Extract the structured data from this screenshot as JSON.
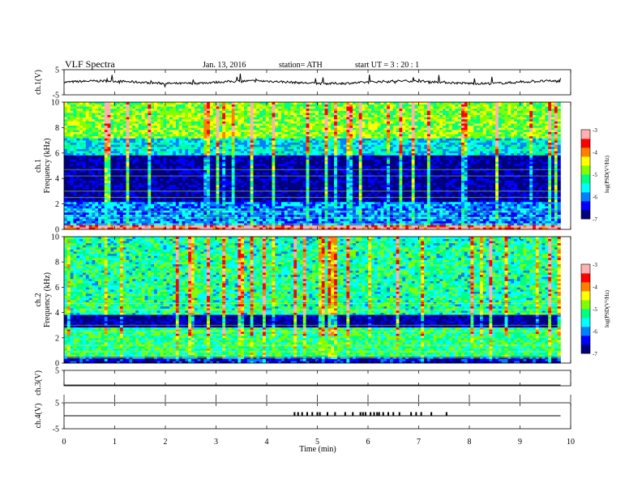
{
  "header": {
    "title": "VLF  Spectra",
    "date": "Jan. 13, 2016",
    "station": "station= ATH",
    "start": "start  UT  =   3  : 20 : 1"
  },
  "chart_data": [
    {
      "type": "line",
      "ylabel": "ch.1(V)",
      "ylim": [
        -5,
        5
      ],
      "yticks": [
        "5",
        "-5"
      ],
      "trace_level_v": 0.0
    },
    {
      "type": "heatmap",
      "ylabel": "ch.1\nFrequency  (kHz)",
      "ylim": [
        0,
        10
      ],
      "yticks": [
        "10",
        "8",
        "6",
        "4",
        "2",
        "0"
      ],
      "colorbar": {
        "label": "log(PSD(V²/Hz)",
        "range": [
          -7,
          -3
        ],
        "ticks": [
          "-3",
          "-4",
          "-5",
          "-6",
          "-7"
        ]
      },
      "bands_khz": [
        {
          "low": 0,
          "high": 0.3,
          "level": -3.5
        },
        {
          "low": 0.3,
          "high": 2.2,
          "level": -6.0
        },
        {
          "low": 2.2,
          "high": 5.8,
          "level": -6.8
        },
        {
          "low": 5.8,
          "high": 7.2,
          "level": -5.6
        },
        {
          "low": 7.2,
          "high": 10,
          "level": -4.8
        }
      ]
    },
    {
      "type": "heatmap",
      "ylabel": "ch.2\nFrequency  (kHz)",
      "ylim": [
        0,
        10
      ],
      "yticks": [
        "10",
        "8",
        "6",
        "4",
        "2",
        "0"
      ],
      "colorbar": {
        "label": "log(PSD(V²/Hz)",
        "range": [
          -7,
          -3
        ],
        "ticks": [
          "-3",
          "-4",
          "-5",
          "-6",
          "-7"
        ]
      },
      "bands_khz": [
        {
          "low": 0,
          "high": 0.5,
          "level": -6.5
        },
        {
          "low": 0.5,
          "high": 2.8,
          "level": -5.2
        },
        {
          "low": 2.8,
          "high": 3.8,
          "level": -6.8
        },
        {
          "low": 3.8,
          "high": 10,
          "level": -5.3
        }
      ]
    },
    {
      "type": "line",
      "ylabel": "ch.3(V)",
      "ylim": [
        -5,
        5
      ],
      "yticks": [
        "5"
      ],
      "trace_level_v": -4.5
    },
    {
      "type": "line",
      "ylabel": "ch.4(V)",
      "ylim": [
        -5,
        5
      ],
      "yticks": [
        "5",
        "-5"
      ],
      "trace_level_v": 0.0,
      "spike_times_min": [
        4.55,
        4.62,
        4.7,
        4.8,
        4.9,
        5.0,
        5.05,
        5.2,
        5.35,
        5.55,
        5.7,
        5.85,
        5.9,
        5.95,
        6.05,
        6.12,
        6.18,
        6.22,
        6.3,
        6.4,
        6.5,
        6.62,
        6.85,
        6.95,
        7.05,
        7.25,
        7.55
      ]
    }
  ],
  "xaxis": {
    "label": "Time  (min)",
    "range": [
      0,
      10
    ],
    "ticks": [
      "0",
      "1",
      "2",
      "3",
      "4",
      "5",
      "6",
      "7",
      "8",
      "9",
      "10"
    ]
  },
  "colors": {
    "colormap": [
      "#00007f",
      "#0000ff",
      "#0080ff",
      "#00ffff",
      "#00ff80",
      "#80ff00",
      "#ffff00",
      "#ff8000",
      "#ff0000",
      "#ffb0b0"
    ]
  }
}
